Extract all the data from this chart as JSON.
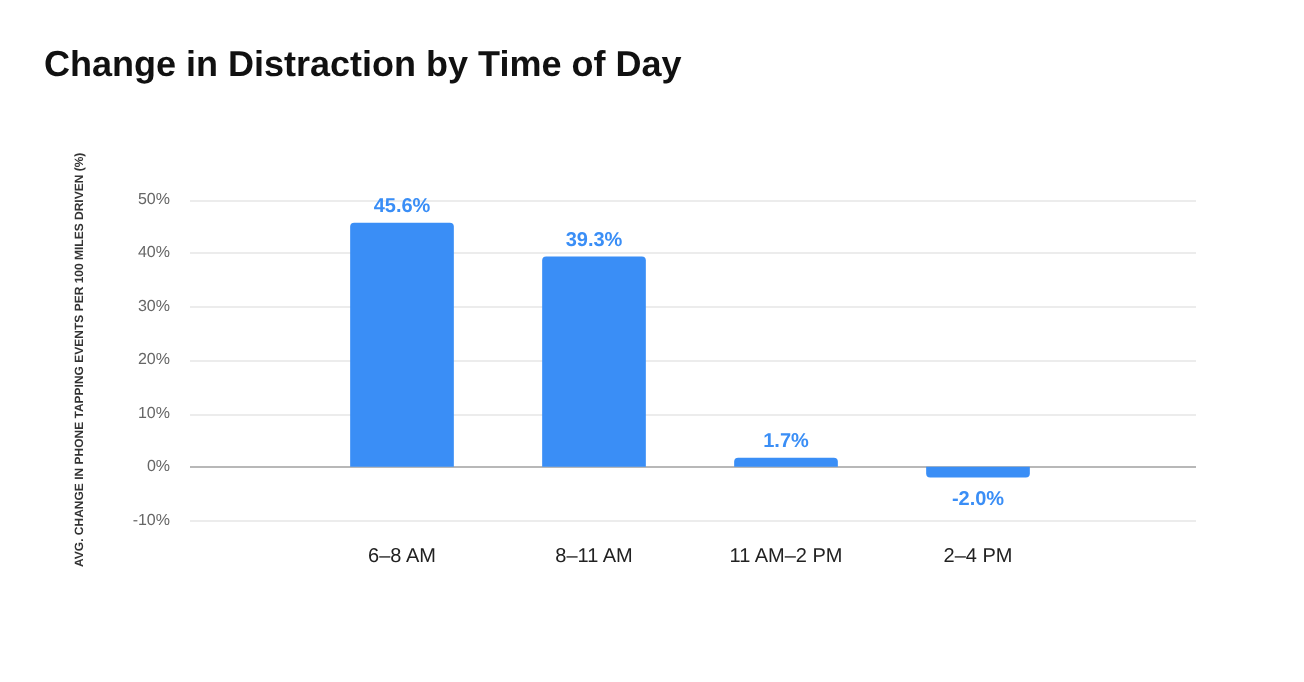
{
  "chart_data": {
    "type": "bar",
    "title": "Change in Distraction by Time of Day",
    "ylabel": "AVG. CHANGE IN PHONE TAPPING EVENTS PER 100 MILES DRIVEN (%)",
    "categories": [
      "6–8 AM",
      "8–11 AM",
      "11 AM–2 PM",
      "2–4 PM"
    ],
    "values": [
      45.6,
      39.3,
      1.7,
      -2.0
    ],
    "value_labels": [
      "45.6%",
      "39.3%",
      "1.7%",
      "-2.0%"
    ],
    "color": "#3a8ef6",
    "ylim": [
      -10,
      50
    ],
    "yticks": [
      {
        "value": -10,
        "label": "-10%"
      },
      {
        "value": 0,
        "label": "0%"
      },
      {
        "value": 10,
        "label": "10%"
      },
      {
        "value": 20,
        "label": "20%"
      },
      {
        "value": 30,
        "label": "30%"
      },
      {
        "value": 40,
        "label": "40%"
      },
      {
        "value": 50,
        "label": "50%"
      }
    ],
    "grid": "y",
    "legend": false
  }
}
